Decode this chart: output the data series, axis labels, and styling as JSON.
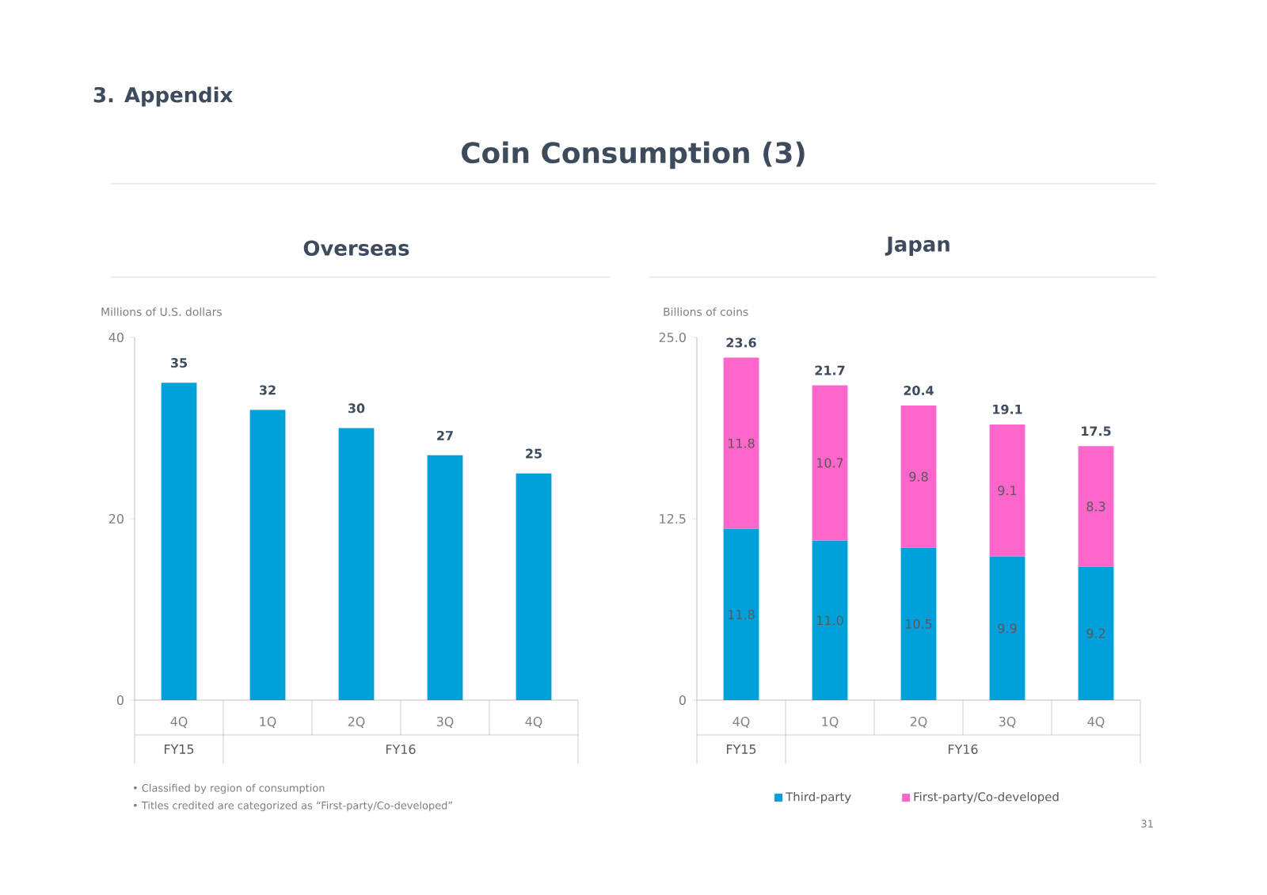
{
  "chart_data": [
    {
      "type": "bar",
      "title": "Overseas",
      "ylabel": "Millions of U.S. dollars",
      "categories": [
        "4Q",
        "1Q",
        "2Q",
        "3Q",
        "4Q"
      ],
      "values": [
        35,
        32,
        30,
        27,
        25
      ],
      "color": "#00a0dc",
      "data_labels": true,
      "ylim": [
        0,
        40
      ],
      "yticks": [
        0,
        20,
        40
      ],
      "legend": false,
      "annotations": [
        "3. Appendix",
        "Coin Consumption (3)",
        "FY15",
        "FY16",
        "• Classified by region of consumption",
        "• Titles credited are categorized as “First-party/Co-developed”"
      ]
    },
    {
      "type": "bar",
      "title": "Japan",
      "ylabel": "Billions of coins",
      "stacked": true,
      "categories": [
        "4Q",
        "1Q",
        "2Q",
        "3Q",
        "4Q"
      ],
      "series": [
        {
          "name": "Third-party",
          "color": "#00a0dc",
          "values": [
            11.8,
            11.0,
            10.5,
            9.9,
            9.2
          ],
          "value_labels": [
            "11.8",
            "11.0",
            "10.5",
            "9.9",
            "9.2"
          ]
        },
        {
          "name": "First-party/Co-developed",
          "color": "#ff66cc",
          "values": [
            11.8,
            10.7,
            9.8,
            9.1,
            8.3
          ],
          "value_labels": [
            "11.8",
            "10.7",
            "9.8",
            "9.1",
            "8.3"
          ]
        }
      ],
      "totals": [
        "23.6",
        "21.7",
        "20.4",
        "19.1",
        "17.5"
      ],
      "ylim": [
        0,
        25
      ],
      "yticks": [
        0,
        {
          "value": 12.5,
          "label": "12.5"
        },
        {
          "value": 25,
          "label": "25.0"
        }
      ],
      "legend": "bottom",
      "annotations": [
        "FY15",
        "FY16",
        "31"
      ]
    }
  ]
}
